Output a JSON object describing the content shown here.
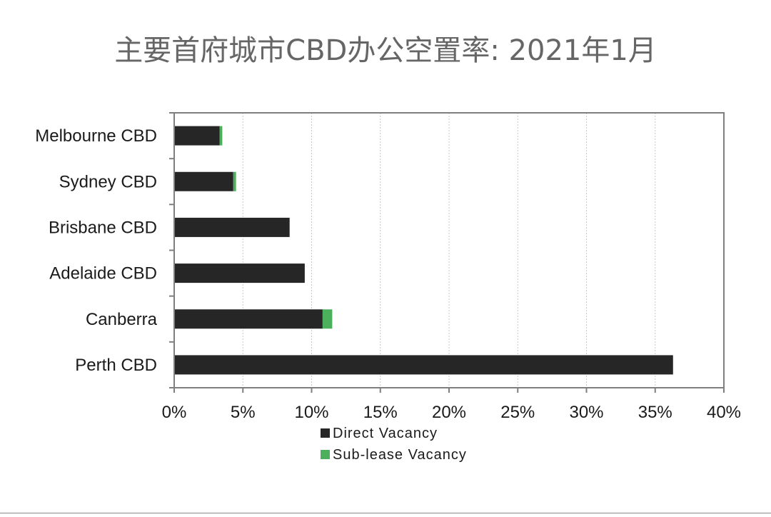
{
  "chart_data": {
    "type": "bar",
    "orientation": "horizontal",
    "stacked": true,
    "title": "主要首府城市CBD办公空置率: 2021年1月",
    "xlabel": "",
    "ylabel": "",
    "categories": [
      "Melbourne CBD",
      "Sydney CBD",
      "Brisbane CBD",
      "Adelaide CBD",
      "Canberra",
      "Perth CBD"
    ],
    "series": [
      {
        "name": "Direct Vacancy",
        "color": "#262626",
        "values": [
          3.3,
          4.3,
          8.4,
          9.5,
          10.8,
          36.3
        ]
      },
      {
        "name": "Sub-lease Vacancy",
        "color": "#4caf5c",
        "values": [
          0.2,
          0.2,
          0.0,
          0.0,
          0.7,
          0.0
        ]
      }
    ],
    "xlim": [
      0,
      40
    ],
    "xticks": [
      0,
      5,
      10,
      15,
      20,
      25,
      30,
      35,
      40
    ],
    "xtick_labels": [
      "0%",
      "5%",
      "10%",
      "15%",
      "20%",
      "25%",
      "30%",
      "35%",
      "40%"
    ],
    "grid": "vertical-dashed",
    "legend": "bottom"
  }
}
